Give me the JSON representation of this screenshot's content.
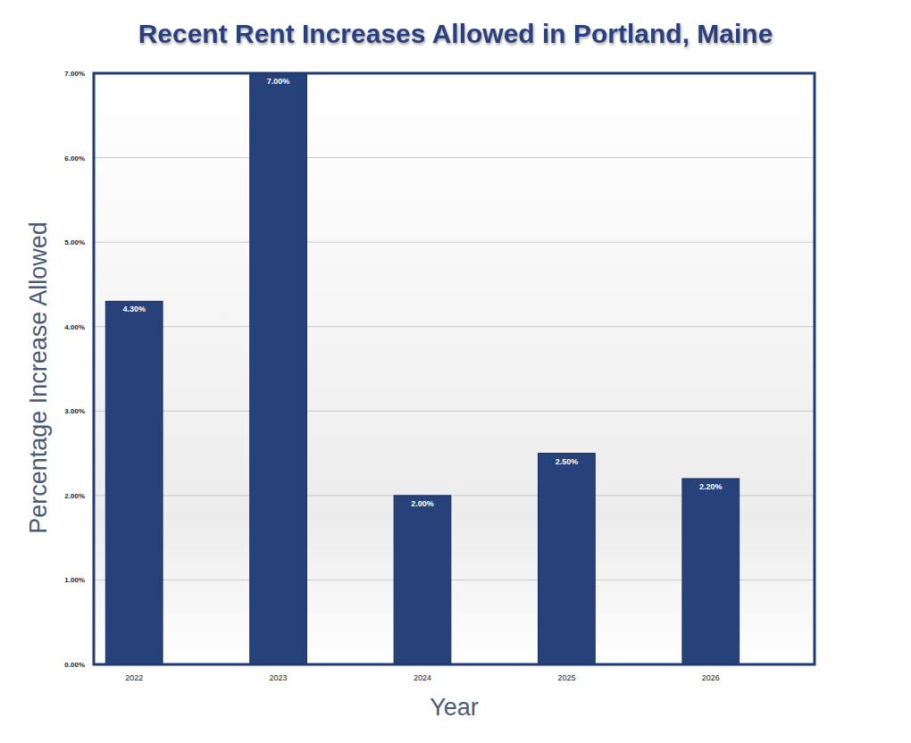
{
  "chart_data": {
    "type": "bar",
    "title": "Recent Rent Increases Allowed in Portland, Maine",
    "x_label": "Year",
    "y_label": "Percentage Increase Allowed",
    "categories": [
      "2022",
      "2023",
      "2024",
      "2025",
      "2026"
    ],
    "values": [
      4.3,
      7,
      2,
      2.5,
      2.2
    ],
    "value_labels": [
      "4.30%",
      "7.00%",
      "2.00%",
      "2.50%",
      "2.20%"
    ],
    "color": "#27427b",
    "ylim": [
      0,
      7
    ],
    "yticks": [
      {
        "value": 0,
        "label": "0.00%"
      },
      {
        "value": 1,
        "label": "1.00%"
      },
      {
        "value": 2,
        "label": "2.00%"
      },
      {
        "value": 3,
        "label": "3.00%"
      },
      {
        "value": 4,
        "label": "4.00%"
      },
      {
        "value": 5,
        "label": "5.00%"
      },
      {
        "value": 6,
        "label": "6.00%"
      },
      {
        "value": 7,
        "label": "7.00%"
      }
    ],
    "grid": true,
    "data_labels": true
  }
}
